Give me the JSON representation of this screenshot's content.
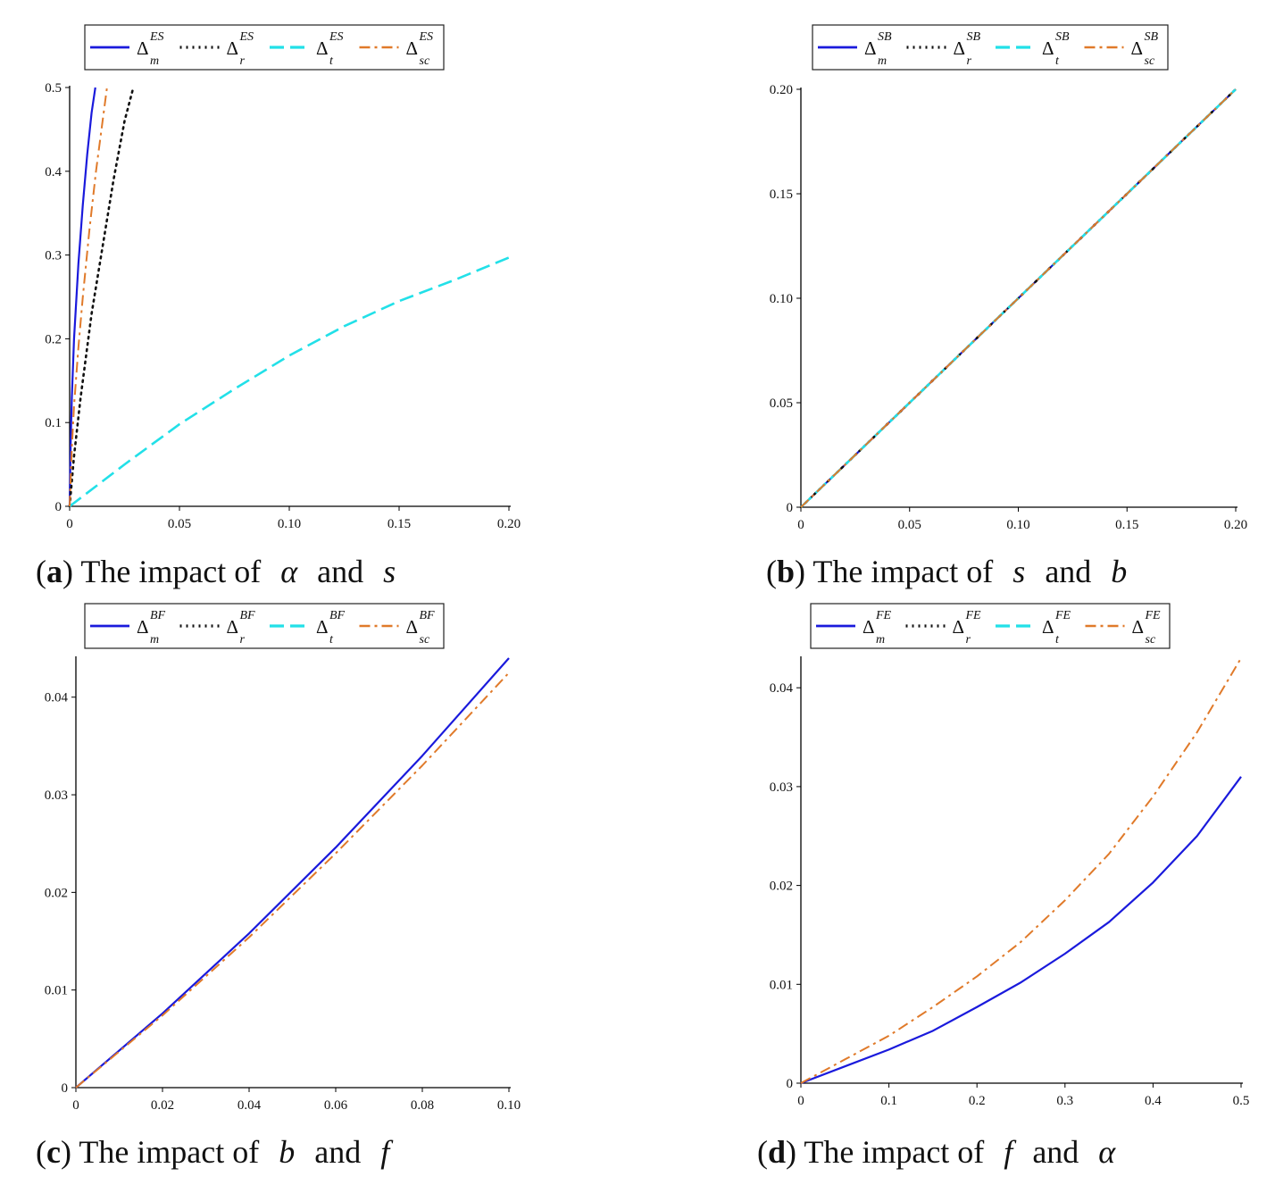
{
  "colors": {
    "m": "#1a1adc",
    "r": "#111111",
    "t": "#22e0e8",
    "sc": "#e07a2a",
    "axis": "#000000",
    "legend_border": "#222222"
  },
  "chart_data": [
    {
      "type": "line",
      "panel": "a",
      "caption": {
        "label": "a",
        "prefix": "The impact of",
        "sym1": "α",
        "conj": "and",
        "sym2": "s"
      },
      "legend": {
        "delta": "Δ",
        "superscript": "ES",
        "entries": [
          {
            "key": "m",
            "sub": "m",
            "style": "solid"
          },
          {
            "key": "r",
            "sub": "r",
            "style": "dotted"
          },
          {
            "key": "t",
            "sub": "t",
            "style": "dashed"
          },
          {
            "key": "sc",
            "sub": "sc",
            "style": "dashdot"
          }
        ]
      },
      "xlim": [
        0,
        0.2
      ],
      "ylim": [
        0,
        0.5
      ],
      "xticks": [
        0,
        0.05,
        0.1,
        0.15,
        0.2
      ],
      "xtick_labels": [
        "0",
        "0.05",
        "0.10",
        "0.15",
        "0.20"
      ],
      "yticks": [
        0,
        0.1,
        0.2,
        0.3,
        0.4,
        0.5
      ],
      "ytick_labels": [
        "0",
        "0.1",
        "0.2",
        "0.3",
        "0.4",
        "0.5"
      ],
      "series": [
        {
          "key": "m",
          "x": [
            0,
            0.0005,
            0.001,
            0.002,
            0.004,
            0.006,
            0.008,
            0.01,
            0.0117
          ],
          "y": [
            0,
            0.08,
            0.13,
            0.2,
            0.29,
            0.36,
            0.42,
            0.47,
            0.5
          ]
        },
        {
          "key": "r",
          "x": [
            0,
            0.002,
            0.005,
            0.01,
            0.015,
            0.02,
            0.025,
            0.029
          ],
          "y": [
            0,
            0.06,
            0.13,
            0.23,
            0.31,
            0.39,
            0.46,
            0.5
          ]
        },
        {
          "key": "t",
          "x": [
            0,
            0.025,
            0.05,
            0.075,
            0.1,
            0.125,
            0.15,
            0.175,
            0.2
          ],
          "y": [
            0,
            0.05,
            0.098,
            0.14,
            0.18,
            0.215,
            0.245,
            0.27,
            0.297
          ]
        },
        {
          "key": "sc",
          "x": [
            0,
            0.001,
            0.002,
            0.004,
            0.006,
            0.009,
            0.012,
            0.0145,
            0.017
          ],
          "y": [
            0,
            0.07,
            0.12,
            0.19,
            0.25,
            0.33,
            0.4,
            0.45,
            0.5
          ]
        }
      ]
    },
    {
      "type": "line",
      "panel": "b",
      "caption": {
        "label": "b",
        "prefix": "The impact of",
        "sym1": "s",
        "conj": "and",
        "sym2": "b"
      },
      "legend": {
        "delta": "Δ",
        "superscript": "SB",
        "entries": [
          {
            "key": "m",
            "sub": "m",
            "style": "solid"
          },
          {
            "key": "r",
            "sub": "r",
            "style": "dotted"
          },
          {
            "key": "t",
            "sub": "t",
            "style": "dashed"
          },
          {
            "key": "sc",
            "sub": "sc",
            "style": "dashdot"
          }
        ]
      },
      "xlim": [
        0,
        0.2
      ],
      "ylim": [
        0,
        0.2
      ],
      "xticks": [
        0,
        0.05,
        0.1,
        0.15,
        0.2
      ],
      "xtick_labels": [
        "0",
        "0.05",
        "0.10",
        "0.15",
        "0.20"
      ],
      "yticks": [
        0,
        0.05,
        0.1,
        0.15,
        0.2
      ],
      "ytick_labels": [
        "0",
        "0.05",
        "0.10",
        "0.15",
        "0.20"
      ],
      "series": [
        {
          "key": "m",
          "x": [
            0,
            0.2
          ],
          "y": [
            0,
            0.2
          ]
        },
        {
          "key": "r",
          "x": [
            0,
            0.2
          ],
          "y": [
            0,
            0.2
          ]
        },
        {
          "key": "t",
          "x": [
            0,
            0.2
          ],
          "y": [
            0,
            0.2
          ]
        },
        {
          "key": "sc",
          "x": [
            0,
            0.2
          ],
          "y": [
            0,
            0.2
          ]
        }
      ]
    },
    {
      "type": "line",
      "panel": "c",
      "caption": {
        "label": "c",
        "prefix": "The impact of",
        "sym1": "b",
        "conj": "and",
        "sym2": "f"
      },
      "legend": {
        "delta": "Δ",
        "superscript": "BF",
        "entries": [
          {
            "key": "m",
            "sub": "m",
            "style": "solid"
          },
          {
            "key": "r",
            "sub": "r",
            "style": "dotted"
          },
          {
            "key": "t",
            "sub": "t",
            "style": "dashed"
          },
          {
            "key": "sc",
            "sub": "sc",
            "style": "dashdot"
          }
        ]
      },
      "xlim": [
        0,
        0.1
      ],
      "ylim": [
        0,
        0.044
      ],
      "xticks": [
        0,
        0.02,
        0.04,
        0.06,
        0.08,
        0.1
      ],
      "xtick_labels": [
        "0",
        "0.02",
        "0.04",
        "0.06",
        "0.08",
        "0.10"
      ],
      "yticks": [
        0,
        0.01,
        0.02,
        0.03,
        0.04
      ],
      "ytick_labels": [
        "0",
        "0.01",
        "0.02",
        "0.03",
        "0.04"
      ],
      "series": [
        {
          "key": "m",
          "x": [
            0,
            0.02,
            0.04,
            0.06,
            0.08,
            0.1
          ],
          "y": [
            0,
            0.0076,
            0.0158,
            0.0246,
            0.034,
            0.044
          ]
        },
        {
          "key": "sc",
          "x": [
            0,
            0.02,
            0.04,
            0.06,
            0.08,
            0.1
          ],
          "y": [
            0,
            0.0074,
            0.0154,
            0.024,
            0.033,
            0.0425
          ]
        }
      ]
    },
    {
      "type": "line",
      "panel": "d",
      "caption": {
        "label": "d",
        "prefix": "The impact of",
        "sym1": "f",
        "conj": "and",
        "sym2": "α"
      },
      "legend": {
        "delta": "Δ",
        "superscript": "FE",
        "entries": [
          {
            "key": "m",
            "sub": "m",
            "style": "solid"
          },
          {
            "key": "r",
            "sub": "r",
            "style": "dotted"
          },
          {
            "key": "t",
            "sub": "t",
            "style": "dashed"
          },
          {
            "key": "sc",
            "sub": "sc",
            "style": "dashdot"
          }
        ]
      },
      "xlim": [
        0,
        0.5
      ],
      "ylim": [
        0,
        0.043
      ],
      "xticks": [
        0,
        0.1,
        0.2,
        0.3,
        0.4,
        0.5
      ],
      "xtick_labels": [
        "0",
        "0.1",
        "0.2",
        "0.3",
        "0.4",
        "0.5"
      ],
      "yticks": [
        0,
        0.01,
        0.02,
        0.03,
        0.04
      ],
      "ytick_labels": [
        "0",
        "0.01",
        "0.02",
        "0.03",
        "0.04"
      ],
      "series": [
        {
          "key": "m",
          "x": [
            0,
            0.05,
            0.1,
            0.15,
            0.2,
            0.25,
            0.3,
            0.35,
            0.4,
            0.45,
            0.5
          ],
          "y": [
            0,
            0.0017,
            0.0034,
            0.0053,
            0.0077,
            0.0102,
            0.0131,
            0.0163,
            0.0203,
            0.025,
            0.031
          ]
        },
        {
          "key": "sc",
          "x": [
            0,
            0.05,
            0.1,
            0.15,
            0.2,
            0.25,
            0.3,
            0.35,
            0.4,
            0.45,
            0.5
          ],
          "y": [
            0,
            0.0024,
            0.0048,
            0.0077,
            0.0108,
            0.0143,
            0.0185,
            0.0232,
            0.029,
            0.0355,
            0.043
          ]
        }
      ]
    }
  ]
}
